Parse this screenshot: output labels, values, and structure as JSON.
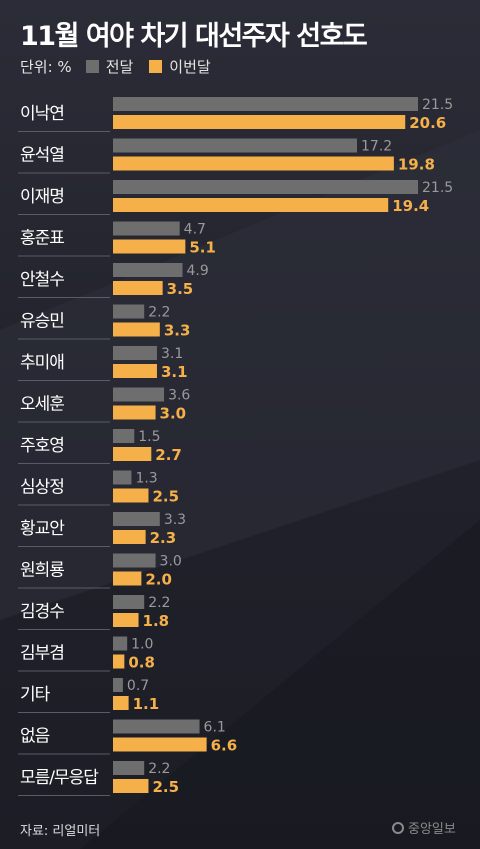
{
  "colors": {
    "prev": "#6e6e6e",
    "current": "#f5b04a",
    "background": "#23242d"
  },
  "header": {
    "title": "11월 여야 차기 대선주자 선호도"
  },
  "legend": {
    "unit": "단위: %",
    "prev": "전달",
    "current": "이번달"
  },
  "footer": {
    "source": "자료: 리얼미터",
    "logo": "중앙일보"
  },
  "chart_data": {
    "type": "bar",
    "orientation": "horizontal",
    "title": "11월 여야 차기 대선주자 선호도",
    "unit": "%",
    "categories": [
      "이낙연",
      "윤석열",
      "이재명",
      "홍준표",
      "안철수",
      "유승민",
      "추미애",
      "오세훈",
      "주호영",
      "심상정",
      "황교안",
      "원희룡",
      "김경수",
      "김부겸",
      "기타",
      "없음",
      "모름/무응답"
    ],
    "series": [
      {
        "name": "전달",
        "values": [
          21.5,
          17.2,
          21.5,
          4.7,
          4.9,
          2.2,
          3.1,
          3.6,
          1.5,
          1.3,
          3.3,
          3.0,
          2.2,
          1.0,
          0.7,
          6.1,
          2.2
        ]
      },
      {
        "name": "이번달",
        "values": [
          20.6,
          19.8,
          19.4,
          5.1,
          3.5,
          3.3,
          3.1,
          3.0,
          2.7,
          2.5,
          2.3,
          2.0,
          1.8,
          0.8,
          1.1,
          6.6,
          2.5
        ]
      }
    ],
    "xlim": [
      0,
      21.5
    ],
    "legend_position": "top-left",
    "grid": false
  }
}
